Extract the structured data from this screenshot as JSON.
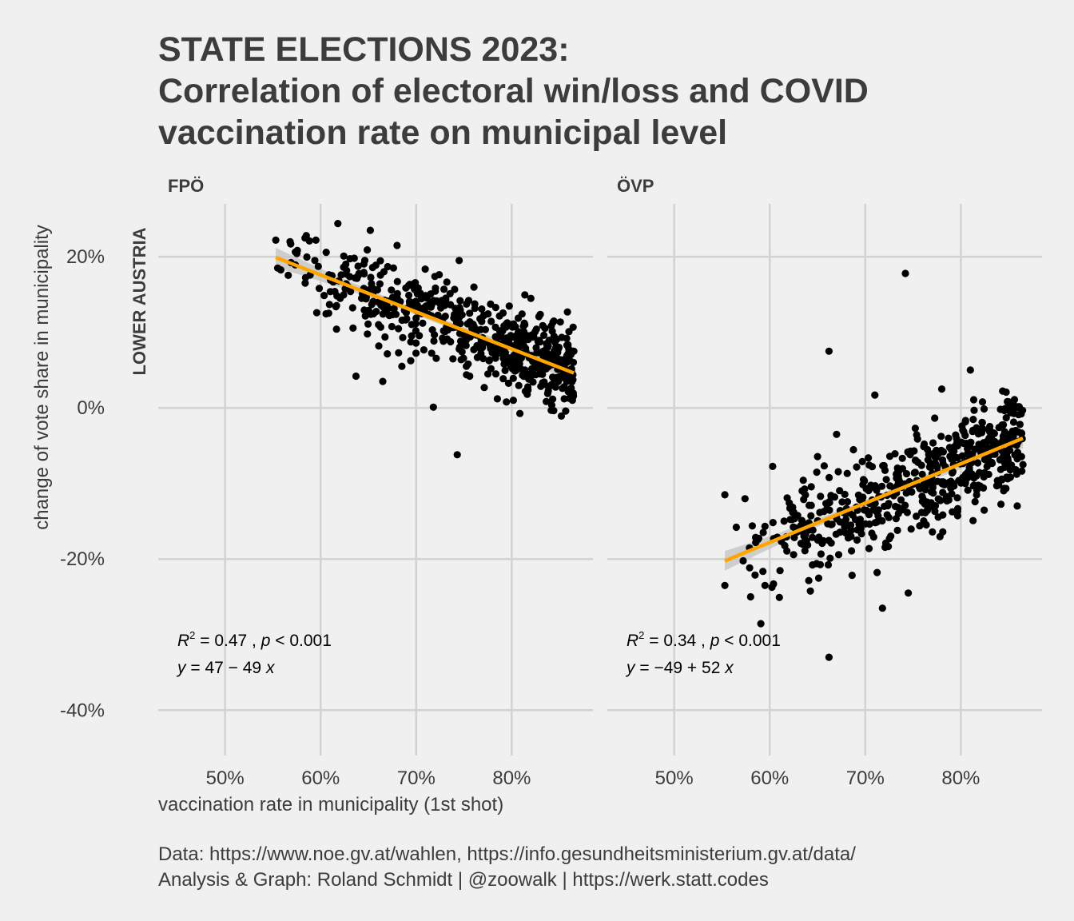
{
  "title_lines": [
    "STATE ELECTIONS 2023:",
    "Correlation of electoral win/loss and COVID",
    "vaccination rate on municipal level"
  ],
  "caption_lines": [
    "Data: https://www.noe.gv.at/wahlen, https://info.gesundheitsministerium.gv.at/data/",
    "Analysis & Graph: Roland Schmidt | @zoowalk | https://werk.statt.codes"
  ],
  "colors": {
    "background": "#f0f0f0",
    "points": "#000000",
    "fit_line": "#ffa500",
    "confidence_band": "#c8c8c8",
    "grid": "#d2d2d2",
    "text": "#3c3c3c"
  },
  "chart_data": {
    "type": "scatter",
    "xlabel": "vaccination rate in municipality (1st shot)",
    "ylabel": "change of vote share in municipality",
    "row_label": "LOWER AUSTRIA",
    "xlim": [
      0.43,
      0.885
    ],
    "ylim": [
      -0.46,
      0.27
    ],
    "x_ticks": [
      0.5,
      0.6,
      0.7,
      0.8
    ],
    "x_tick_labels": [
      "50%",
      "60%",
      "70%",
      "80%"
    ],
    "y_ticks": [
      -0.4,
      -0.2,
      0,
      0.2
    ],
    "y_tick_labels": [
      "-40%",
      "-20%",
      "0%",
      "20%"
    ],
    "grid": true,
    "panels": [
      {
        "name": "FPÖ",
        "fit": {
          "intercept": 0.47,
          "slope": -0.49,
          "x_range": [
            0.553,
            0.865
          ]
        },
        "annotation_r2": "0.47",
        "annotation_p": "0.001",
        "annotation_eq_intercept": "47",
        "annotation_eq_op": "−",
        "annotation_eq_slope": "49",
        "n_points": 560,
        "point_x_range": [
          0.553,
          0.865
        ],
        "point_noise_sd": 0.028,
        "outliers": [
          {
            "x": 0.553,
            "y": 0.222
          },
          {
            "x": 0.555,
            "y": 0.185
          },
          {
            "x": 0.568,
            "y": 0.22
          },
          {
            "x": 0.585,
            "y": 0.228
          },
          {
            "x": 0.595,
            "y": 0.222
          },
          {
            "x": 0.618,
            "y": 0.244
          },
          {
            "x": 0.652,
            "y": 0.235
          },
          {
            "x": 0.68,
            "y": 0.215
          },
          {
            "x": 0.718,
            "y": 0.001
          },
          {
            "x": 0.743,
            "y": -0.062
          },
          {
            "x": 0.745,
            "y": 0.195
          },
          {
            "x": 0.637,
            "y": 0.042
          },
          {
            "x": 0.665,
            "y": 0.035
          },
          {
            "x": 0.685,
            "y": 0.055
          },
          {
            "x": 0.785,
            "y": 0.012
          },
          {
            "x": 0.82,
            "y": 0.145
          },
          {
            "x": 0.855,
            "y": 0.012
          },
          {
            "x": 0.865,
            "y": 0.075
          }
        ]
      },
      {
        "name": "ÖVP",
        "fit": {
          "intercept": -0.49,
          "slope": 0.52,
          "x_range": [
            0.553,
            0.865
          ]
        },
        "annotation_r2": "0.34",
        "annotation_p": "0.001",
        "annotation_eq_intercept": "−49",
        "annotation_eq_op": "+",
        "annotation_eq_slope": "52",
        "n_points": 560,
        "point_x_range": [
          0.553,
          0.865
        ],
        "point_noise_sd": 0.035,
        "outliers": [
          {
            "x": 0.742,
            "y": 0.178
          },
          {
            "x": 0.662,
            "y": 0.075
          },
          {
            "x": 0.662,
            "y": -0.33
          },
          {
            "x": 0.718,
            "y": -0.265
          },
          {
            "x": 0.553,
            "y": -0.115
          },
          {
            "x": 0.553,
            "y": -0.235
          },
          {
            "x": 0.565,
            "y": -0.158
          },
          {
            "x": 0.58,
            "y": -0.25
          },
          {
            "x": 0.595,
            "y": -0.235
          },
          {
            "x": 0.745,
            "y": -0.245
          },
          {
            "x": 0.81,
            "y": 0.05
          },
          {
            "x": 0.85,
            "y": 0.008
          },
          {
            "x": 0.71,
            "y": 0.017
          },
          {
            "x": 0.78,
            "y": 0.025
          },
          {
            "x": 0.865,
            "y": -0.075
          },
          {
            "x": 0.67,
            "y": -0.035
          }
        ]
      }
    ]
  }
}
